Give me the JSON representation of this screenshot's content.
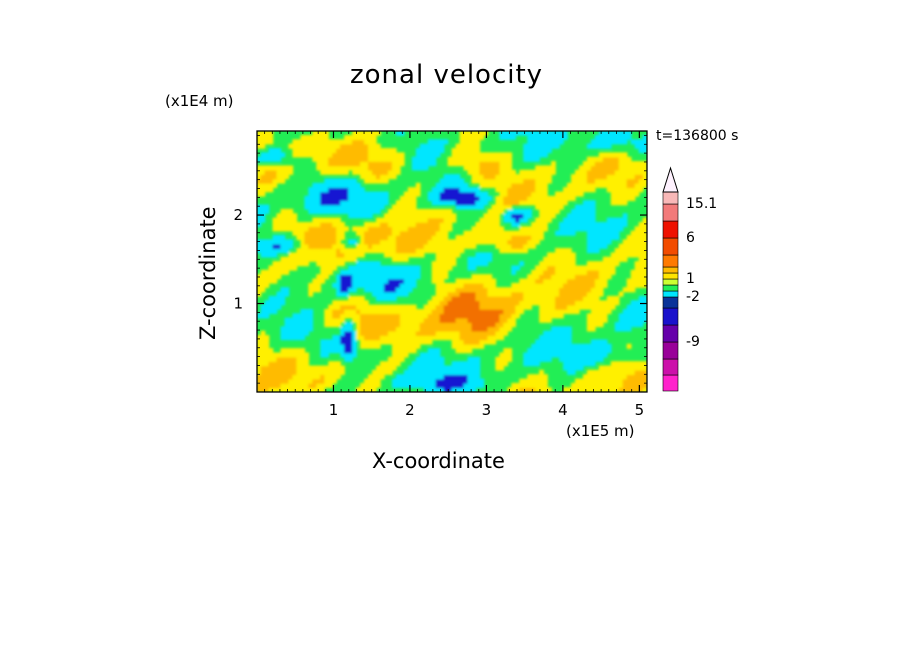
{
  "chart_data": {
    "type": "heatmap",
    "title": "zonal velocity",
    "xlabel": "X-coordinate",
    "ylabel": "Z-coordinate",
    "x_unit": "(x1E5 m)",
    "y_unit": "(x1E4 m)",
    "annotation": "t=136800 s",
    "xlim": [
      0,
      5.1
    ],
    "ylim": [
      0,
      2.95
    ],
    "x_ticks": [
      {
        "value": 1,
        "label": "1"
      },
      {
        "value": 2,
        "label": "2"
      },
      {
        "value": 3,
        "label": "3"
      },
      {
        "value": 4,
        "label": "4"
      },
      {
        "value": 5,
        "label": "5"
      }
    ],
    "y_ticks": [
      {
        "value": 1,
        "label": "1"
      },
      {
        "value": 2,
        "label": "2"
      }
    ],
    "colorbar": {
      "levels_bottom_to_top": [
        {
          "color": "#ff22cc"
        },
        {
          "color": "#cc11aa"
        },
        {
          "color": "#990099",
          "label": "-9"
        },
        {
          "color": "#6600aa"
        },
        {
          "color": "#1a12cc"
        },
        {
          "color": "#0a3399",
          "label": "-2"
        },
        {
          "color": "#00e6ff"
        },
        {
          "color": "#22ee55"
        },
        {
          "color": "#ccff33",
          "label": "1"
        },
        {
          "color": "#ffe500"
        },
        {
          "color": "#ffbb00"
        },
        {
          "color": "#ff7a00"
        },
        {
          "color": "#f24c00",
          "label": "6"
        },
        {
          "color": "#ee1100"
        },
        {
          "color": "#f27a7a",
          "label": "15.1"
        },
        {
          "color": "#f9b8b8"
        },
        {
          "color": "#fff2ff",
          "arrow": true
        }
      ]
    },
    "field_palette": {
      "strong_negative": "#1414d2",
      "negative": "#00e6ff",
      "near_zero": "#22ee55",
      "weak_positive": "#fff000",
      "positive": "#ffbb00",
      "strong_positive": "#f27000"
    }
  }
}
